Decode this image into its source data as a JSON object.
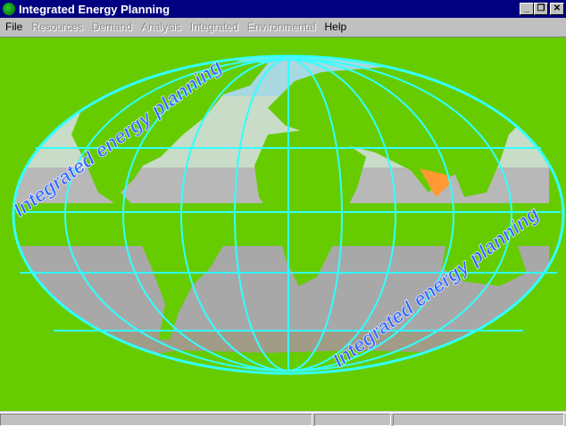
{
  "window": {
    "title": "Integrated Energy Planning",
    "icon": "globe-icon",
    "controls": [
      "minimize",
      "restore",
      "close"
    ]
  },
  "menu": [
    {
      "label": "File",
      "enabled": true
    },
    {
      "label": "Resources",
      "enabled": false
    },
    {
      "label": "Demand",
      "enabled": false
    },
    {
      "label": "Analysis",
      "enabled": false
    },
    {
      "label": "Integrated",
      "enabled": false
    },
    {
      "label": "Environmental",
      "enabled": false
    },
    {
      "label": "Help",
      "enabled": true
    }
  ],
  "map": {
    "banner_text_1": "Integrated energy planning",
    "banner_text_2": "Integrated energy planning",
    "highlight_region": "India",
    "colors": {
      "background": "#66cc00",
      "land": "#66cc00",
      "grid": "#33ffff",
      "highlight": "#ff9933",
      "text": "#3366ff"
    }
  },
  "status": {
    "panes": [
      "",
      "",
      ""
    ]
  }
}
